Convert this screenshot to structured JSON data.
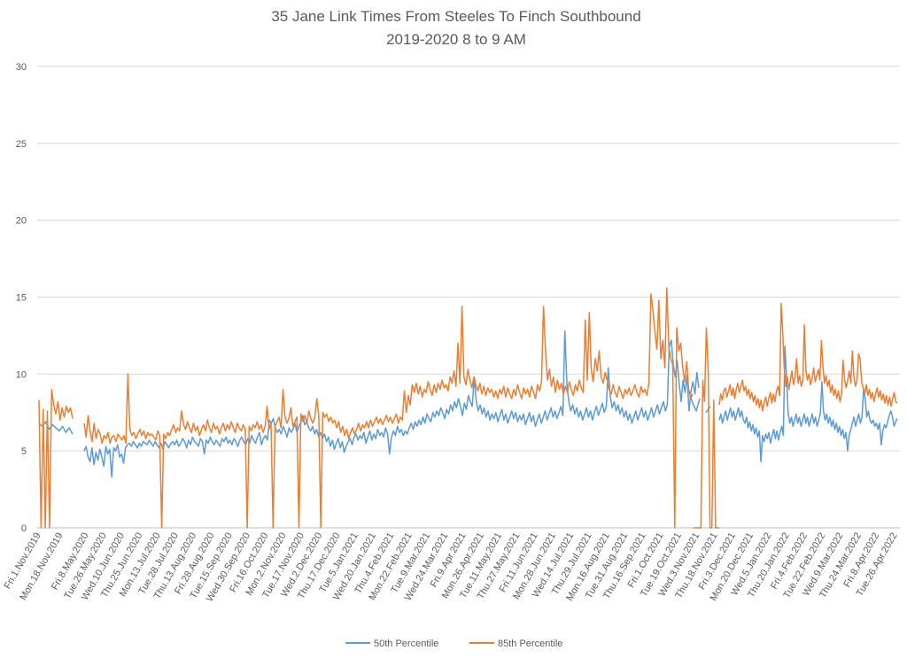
{
  "chart_data": {
    "type": "line",
    "title": "35 Jane Link Times From Steeles To Finch Southbound",
    "subtitle": "2019-2020 8 to 9 AM",
    "ylim": [
      0,
      30
    ],
    "yticks": [
      0,
      5,
      10,
      15,
      20,
      25,
      30
    ],
    "grid": true,
    "legend_position": "bottom-center",
    "x_tick_labels": [
      "Fri.1.Nov.2019",
      "Mon.18.Nov.2019",
      "Fri.8.May.2020",
      "Tue.26.May.2020",
      "Wed.10.Jun.2020",
      "Thu.25.Jun.2020",
      "Mon.13.Jul.2020",
      "Tue.28.Jul.2020",
      "Thu.13.Aug.2020",
      "Fri.28.Aug.2020",
      "Tue.15.Sep.2020",
      "Wed.30.Sep.2020",
      "Fri.16.Oct.2020",
      "Mon.2.Nov.2020",
      "Tue.17.Nov.2020",
      "Wed.2.Dec.2020",
      "Thu.17.Dec.2020",
      "Tue.5.Jan.2021",
      "Wed.20.Jan.2021",
      "Thu.4.Feb.2021",
      "Mon.22.Feb.2021",
      "Tue.9.Mar.2021",
      "Wed.24.Mar.2021",
      "Fri.9.Apr.2021",
      "Mon.26.Apr.2021",
      "Tue.11.May.2021",
      "Thu.27.May.2021",
      "Fri.11.Jun.2021",
      "Mon.28.Jun.2021",
      "Wed.14.Jul.2021",
      "Thu.29.Jul.2021",
      "Mon.16.Aug.2021",
      "Tue.31.Aug.2021",
      "Thu.16.Sep.2021",
      "Fri.1.Oct.2021",
      "Tue.19.Oct.2021",
      "Wed.3.Nov.2021",
      "Thu.18.Nov.2021",
      "Fri.3.Dec.2021",
      "Mon.20.Dec.2021",
      "Wed.5.Jan.2022",
      "Thu.20.Jan.2022",
      "Fri.4.Feb.2022",
      "Tue.22.Feb.2022",
      "Wed.9.Mar.2022",
      "Thu.24.Mar.2022",
      "Fri.8.Apr.2022",
      "Tue.26.Apr.2022"
    ],
    "series": [
      {
        "name": "50th Percentile",
        "color": "#5b9bd5",
        "segments": [
          [
            6.8,
            6.6,
            6.9,
            6.4,
            6.7,
            6.5,
            6.3,
            6.6,
            6.2,
            6.5,
            6.1
          ],
          [
            5.0,
            5.3,
            4.6,
            4.3,
            5.2,
            4.1,
            4.9,
            4.4,
            5.1,
            4.6,
            4.0,
            5.3,
            4.8,
            5.1,
            3.3,
            5.2,
            5.0,
            5.4,
            4.6,
            4.8,
            4.2,
            5.2,
            5.4,
            5.5,
            5.3,
            5.6,
            5.4,
            5.2,
            5.5,
            5.3,
            5.6,
            5.5,
            5.4,
            5.7,
            5.5,
            5.3,
            5.6,
            5.4,
            5.2,
            5.5,
            5.1,
            5.6,
            5.4,
            5.2,
            5.5,
            5.6,
            5.4,
            5.7,
            5.3,
            5.5,
            5.8,
            5.6,
            5.2,
            5.7,
            5.4,
            5.9,
            5.6,
            5.5,
            5.3,
            5.8,
            5.6,
            4.8,
            5.7,
            5.5,
            5.9,
            5.6,
            5.4,
            5.7,
            5.5,
            5.3,
            5.8,
            5.6,
            5.9,
            5.5,
            5.7,
            5.4,
            5.8,
            5.6,
            5.3,
            5.7,
            5.9,
            5.6,
            5.4,
            5.8,
            5.5,
            6.0,
            5.7,
            5.5,
            5.9,
            6.2,
            5.4,
            5.8,
            6.0,
            5.7,
            7.0,
            6.8,
            7.1,
            6.5,
            6.2,
            6.4,
            6.1,
            6.6,
            6.3,
            5.9,
            6.5,
            6.2,
            6.4,
            6.8,
            6.2,
            6.6,
            6.9,
            7.3,
            6.7,
            6.9,
            6.5,
            6.3,
            6.6,
            6.1,
            6.4,
            5.9,
            6.2,
            5.8,
            6.1,
            5.6,
            5.9,
            5.3,
            5.7,
            5.1,
            5.5,
            5.8,
            5.2,
            5.6,
            4.9,
            5.3,
            5.6,
            5.8,
            5.4,
            5.9,
            6.1,
            5.7,
            6.0,
            5.8,
            6.2,
            5.5,
            5.9,
            6.3,
            5.7,
            6.1,
            5.8,
            6.4,
            6.0,
            6.2,
            5.9,
            6.5,
            6.1,
            4.8,
            5.9,
            6.3,
            6.0,
            6.6,
            6.2,
            6.4,
            6.0,
            6.3,
            6.1,
            6.5,
            6.8,
            6.4,
            6.9,
            6.6,
            7.0,
            6.7,
            7.2,
            6.8,
            7.4,
            7.1,
            6.9,
            7.5,
            7.2,
            7.6,
            7.3,
            7.8,
            7.5,
            7.1,
            7.7,
            7.4,
            8.0,
            7.6,
            8.2,
            7.8,
            8.4,
            7.9,
            7.3,
            8.1,
            7.7,
            8.6,
            8.2,
            7.9,
            9.8,
            8.3,
            7.6,
            8.0,
            7.4,
            7.8,
            7.2,
            7.6,
            7.0,
            7.4,
            7.1,
            7.5,
            6.9,
            7.3,
            7.7,
            7.0,
            7.4,
            6.8,
            7.2,
            7.6,
            7.1,
            7.5,
            6.9,
            7.3,
            7.0,
            7.4,
            6.7,
            7.1,
            7.5,
            6.9,
            7.3,
            6.6,
            7.0,
            7.4,
            6.8,
            7.2,
            7.6,
            7.0,
            7.4,
            7.8,
            7.2,
            7.6,
            7.1,
            7.5,
            7.9,
            7.3,
            12.8,
            9.4,
            8.2,
            7.6,
            8.0,
            7.4,
            7.8,
            7.2,
            7.6,
            7.0,
            7.4,
            7.8,
            7.2,
            7.6,
            7.0,
            7.5,
            7.9,
            7.3,
            7.7,
            8.1,
            7.5,
            7.9,
            10.4,
            8.6,
            7.8,
            8.2,
            7.6,
            8.0,
            7.4,
            7.8,
            7.2,
            7.6,
            7.0,
            7.4,
            6.8,
            7.2,
            7.6,
            7.0,
            7.4,
            7.8,
            7.2,
            7.6,
            7.0,
            7.4,
            7.8,
            7.2,
            7.6,
            8.0,
            7.4,
            7.8,
            8.2,
            7.6,
            8.0,
            11.8,
            12.2,
            10.6,
            9.8,
            10.9,
            9.4,
            8.2,
            9.6,
            8.8,
            9.9,
            7.6,
            8.9,
            9.5,
            8.7,
            10.1,
            9.1
          ],
          [
            8.9,
            8.1,
            7.6,
            8.4
          ],
          [
            7.5,
            7.9
          ],
          [
            7.0,
            7.4,
            6.8,
            7.2,
            7.6,
            7.0,
            7.4,
            7.8,
            7.2,
            7.6,
            7.0,
            7.4,
            7.8,
            7.2,
            7.6,
            7.0,
            6.8,
            7.2,
            6.5,
            6.9,
            6.3,
            6.7,
            6.1,
            6.5,
            5.9,
            6.3,
            4.3,
            6.0,
            5.6,
            6.1,
            5.8,
            6.2,
            5.5,
            6.0,
            6.4,
            5.8,
            6.3,
            5.7,
            6.2,
            6.6,
            6.0,
            11.8,
            9.6,
            7.4,
            6.8,
            7.2,
            6.6,
            7.0,
            7.4,
            6.8,
            7.2,
            6.6,
            7.0,
            7.4,
            6.8,
            7.2,
            6.6,
            7.0,
            7.4,
            6.8,
            7.2,
            6.6,
            7.0,
            7.4,
            9.5,
            7.6,
            7.0,
            7.4,
            6.8,
            7.2,
            6.6,
            7.0,
            6.4,
            6.8,
            6.2,
            6.6,
            6.0,
            6.4,
            5.8,
            6.2,
            5.0,
            6.0,
            6.4,
            6.8,
            7.2,
            6.6,
            7.0,
            7.4,
            6.8,
            7.2,
            9.0,
            8.4,
            7.2,
            7.6,
            7.0,
            6.8,
            7.0,
            6.6,
            6.8,
            6.4,
            6.8,
            5.4,
            6.3,
            6.7,
            6.5,
            6.9,
            7.3,
            7.6,
            7.2,
            6.6,
            6.9,
            7.1
          ]
        ]
      },
      {
        "name": "85th Percentile",
        "color": "#ed7d31",
        "segments": [
          [
            8.3,
            0,
            7.7,
            0,
            7.6,
            0,
            9.0,
            8.0,
            7.4,
            8.2,
            7.0,
            7.8,
            7.2,
            7.9,
            7.5,
            7.8,
            7.1
          ],
          [
            6.8,
            5.9,
            7.3,
            6.3,
            5.6,
            6.8,
            5.8,
            6.4,
            6.1,
            5.5,
            6.0,
            5.8,
            6.2,
            5.5,
            5.9,
            6.0,
            5.6,
            6.1,
            5.9,
            5.7,
            6.0,
            5.5,
            10.0,
            6.4,
            6.0,
            6.2,
            5.8,
            6.1,
            6.4,
            6.0,
            6.3,
            5.8,
            6.2,
            6.0,
            6.1,
            5.9,
            5.7,
            6.3,
            6.0,
            0,
            6.1,
            5.8,
            6.2,
            6.0,
            6.4,
            6.7,
            6.2,
            6.5,
            6.3,
            7.6,
            6.7,
            6.4,
            6.9,
            6.5,
            6.2,
            6.8,
            6.3,
            6.6,
            6.0,
            6.4,
            6.7,
            6.3,
            7.0,
            6.5,
            6.2,
            6.8,
            6.4,
            6.6,
            6.1,
            6.5,
            6.8,
            6.3,
            6.7,
            6.4,
            6.9,
            6.5,
            6.2,
            6.8,
            6.5,
            6.3,
            6.7,
            6.4,
            0,
            6.6,
            6.3,
            6.7,
            6.5,
            6.9,
            6.4,
            6.7,
            6.2,
            6.6,
            7.9,
            6.4,
            6.8,
            0,
            6.6,
            6.9,
            7.2,
            6.5,
            9.0,
            7.2,
            6.8,
            7.1,
            7.8,
            6.6,
            6.9,
            7.2,
            0,
            7.4,
            6.9,
            7.3,
            6.8,
            7.6,
            7.1,
            6.8,
            7.2,
            8.4,
            7.3,
            0,
            7.5,
            7.2,
            7.4,
            6.9,
            7.2,
            6.8,
            7.0,
            6.5,
            6.9,
            6.2,
            6.6,
            6.0,
            6.4,
            5.8,
            6.2,
            6.5,
            6.1,
            6.4,
            6.8,
            6.3,
            6.7,
            6.5,
            6.9,
            6.5,
            7.0,
            6.6,
            6.9,
            7.2,
            6.8,
            7.1,
            6.7,
            7.0,
            7.3,
            6.9,
            7.2,
            6.8,
            7.1,
            7.4,
            6.8,
            7.2,
            7.0,
            8.9,
            7.5,
            8.6,
            8.0,
            9.3,
            8.8,
            9.4,
            8.7,
            9.2,
            8.5,
            9.0,
            8.8,
            9.5,
            9.0,
            8.6,
            9.3,
            8.8,
            9.4,
            9.0,
            9.6,
            9.1,
            9.3,
            8.9,
            9.8,
            9.4,
            10.2,
            9.2,
            12.0,
            9.4,
            14.4,
            9.8,
            9.3,
            10.3,
            9.6,
            9.1,
            9.8,
            9.3,
            8.9,
            9.4,
            8.7,
            9.2,
            8.6,
            9.1,
            8.8,
            9.0,
            8.5,
            8.9,
            8.4,
            9.0,
            8.7,
            9.2,
            8.5,
            9.1,
            8.7,
            8.4,
            9.0,
            8.6,
            9.3,
            8.8,
            8.4,
            9.1,
            8.7,
            9.0,
            8.5,
            9.2,
            8.8,
            8.4,
            9.3,
            8.9,
            9.5,
            14.4,
            11.5,
            9.6,
            10.3,
            9.2,
            9.8,
            8.8,
            9.6,
            9.0,
            9.4,
            8.7,
            9.2,
            8.8,
            9.5,
            9.0,
            8.6,
            9.3,
            8.9,
            9.6,
            9.1,
            8.8,
            13.5,
            9.6,
            14.0,
            10.3,
            9.5,
            11.0,
            10.2,
            11.5,
            9.8,
            9.4,
            10.1,
            9.6,
            9.0,
            8.7,
            9.3,
            8.8,
            8.5,
            9.2,
            8.8,
            8.4,
            9.0,
            8.7,
            9.1,
            8.6,
            8.9,
            9.3,
            8.8,
            8.5,
            9.2,
            8.8,
            9.0,
            8.6,
            9.4,
            15.2,
            14.2,
            12.8,
            11.6,
            14.8,
            11.0,
            12.2,
            10.4,
            15.6,
            11.8,
            11.0,
            10.6,
            0,
            13.0,
            11.5,
            12.0,
            10.4,
            9.5,
            10.8,
            9.0,
            8.4,
            8.7
          ],
          [
            0,
            0,
            0,
            0,
            0,
            9.6,
            8.2,
            13.0,
            10.2,
            0,
            0,
            8.3,
            0,
            0,
            0
          ],
          [
            8.0,
            8.7,
            8.3,
            8.9,
            9.1,
            8.5,
            8.9,
            9.3,
            8.6,
            9.1,
            8.4,
            9.0,
            9.4,
            8.8,
            9.2,
            9.6,
            8.9,
            9.2,
            8.6,
            9.0,
            8.4,
            8.8,
            8.2,
            8.6,
            8.0,
            8.4,
            7.8,
            8.3,
            7.6,
            8.1,
            8.5,
            7.9,
            8.4,
            8.8,
            8.1,
            8.7,
            8.2,
            8.9,
            9.2,
            8.6,
            14.6,
            12.8,
            10.4,
            9.2,
            9.8,
            9.0,
            9.6,
            10.2,
            9.3,
            9.8,
            11.0,
            9.4,
            9.9,
            9.2,
            9.6,
            13.2,
            10.2,
            9.6,
            10.0,
            9.3,
            9.7,
            10.4,
            9.5,
            9.9,
            10.3,
            9.6,
            12.2,
            10.5,
            9.4,
            9.9,
            9.2,
            9.6,
            8.8,
            9.3,
            8.6,
            9.0,
            8.4,
            8.9,
            8.2,
            8.7,
            10.9,
            9.6,
            9.1,
            9.6,
            10.2,
            9.4,
            11.5,
            9.8,
            9.2,
            9.6,
            11.3,
            11.0,
            9.5,
            9.1,
            8.7,
            9.3,
            8.6,
            9.0,
            8.4,
            8.8,
            8.2,
            8.7,
            9.1,
            8.5,
            8.9,
            8.3,
            8.7,
            8.1,
            8.6,
            8.0,
            8.5,
            7.9,
            8.4,
            8.8,
            8.2,
            8.1
          ]
        ]
      }
    ]
  }
}
